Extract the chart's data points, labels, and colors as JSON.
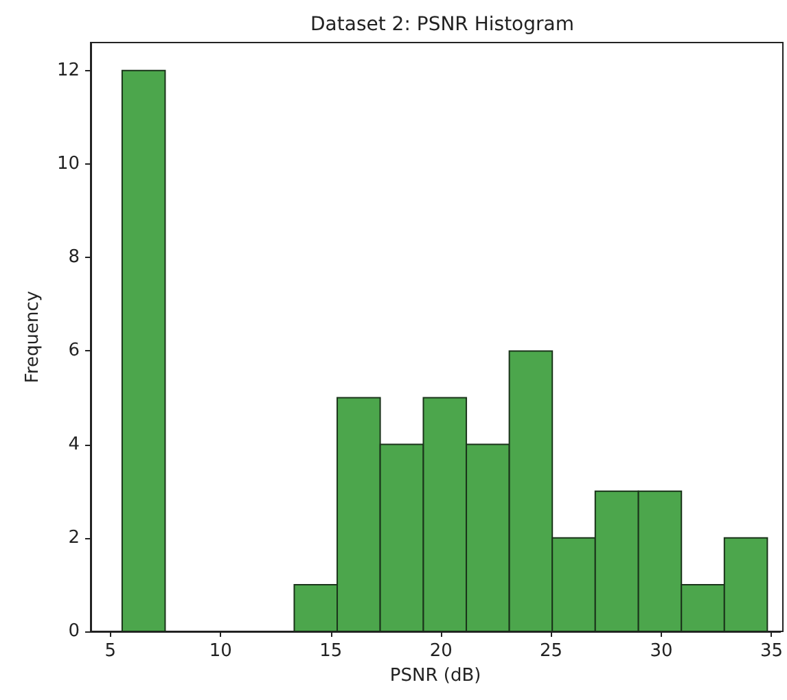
{
  "chart_data": {
    "type": "histogram",
    "title": "Dataset 2: PSNR Histogram",
    "xlabel": "PSNR (dB)",
    "ylabel": "Frequency",
    "bins": [
      5.53,
      7.48,
      9.43,
      11.39,
      13.34,
      15.29,
      17.24,
      19.2,
      21.15,
      23.1,
      25.05,
      27.0,
      28.96,
      30.91,
      32.86,
      34.81
    ],
    "values": [
      12,
      0,
      0,
      0,
      1,
      5,
      4,
      5,
      4,
      6,
      2,
      3,
      3,
      1,
      2
    ],
    "color": "#4ca64c",
    "xlim": [
      4.1,
      35.4
    ],
    "xticks": [
      5,
      10,
      15,
      20,
      25,
      30,
      35
    ],
    "ylim": [
      0,
      12.6
    ],
    "yticks": [
      0,
      2,
      4,
      6,
      8,
      10,
      12
    ],
    "grid": false
  }
}
